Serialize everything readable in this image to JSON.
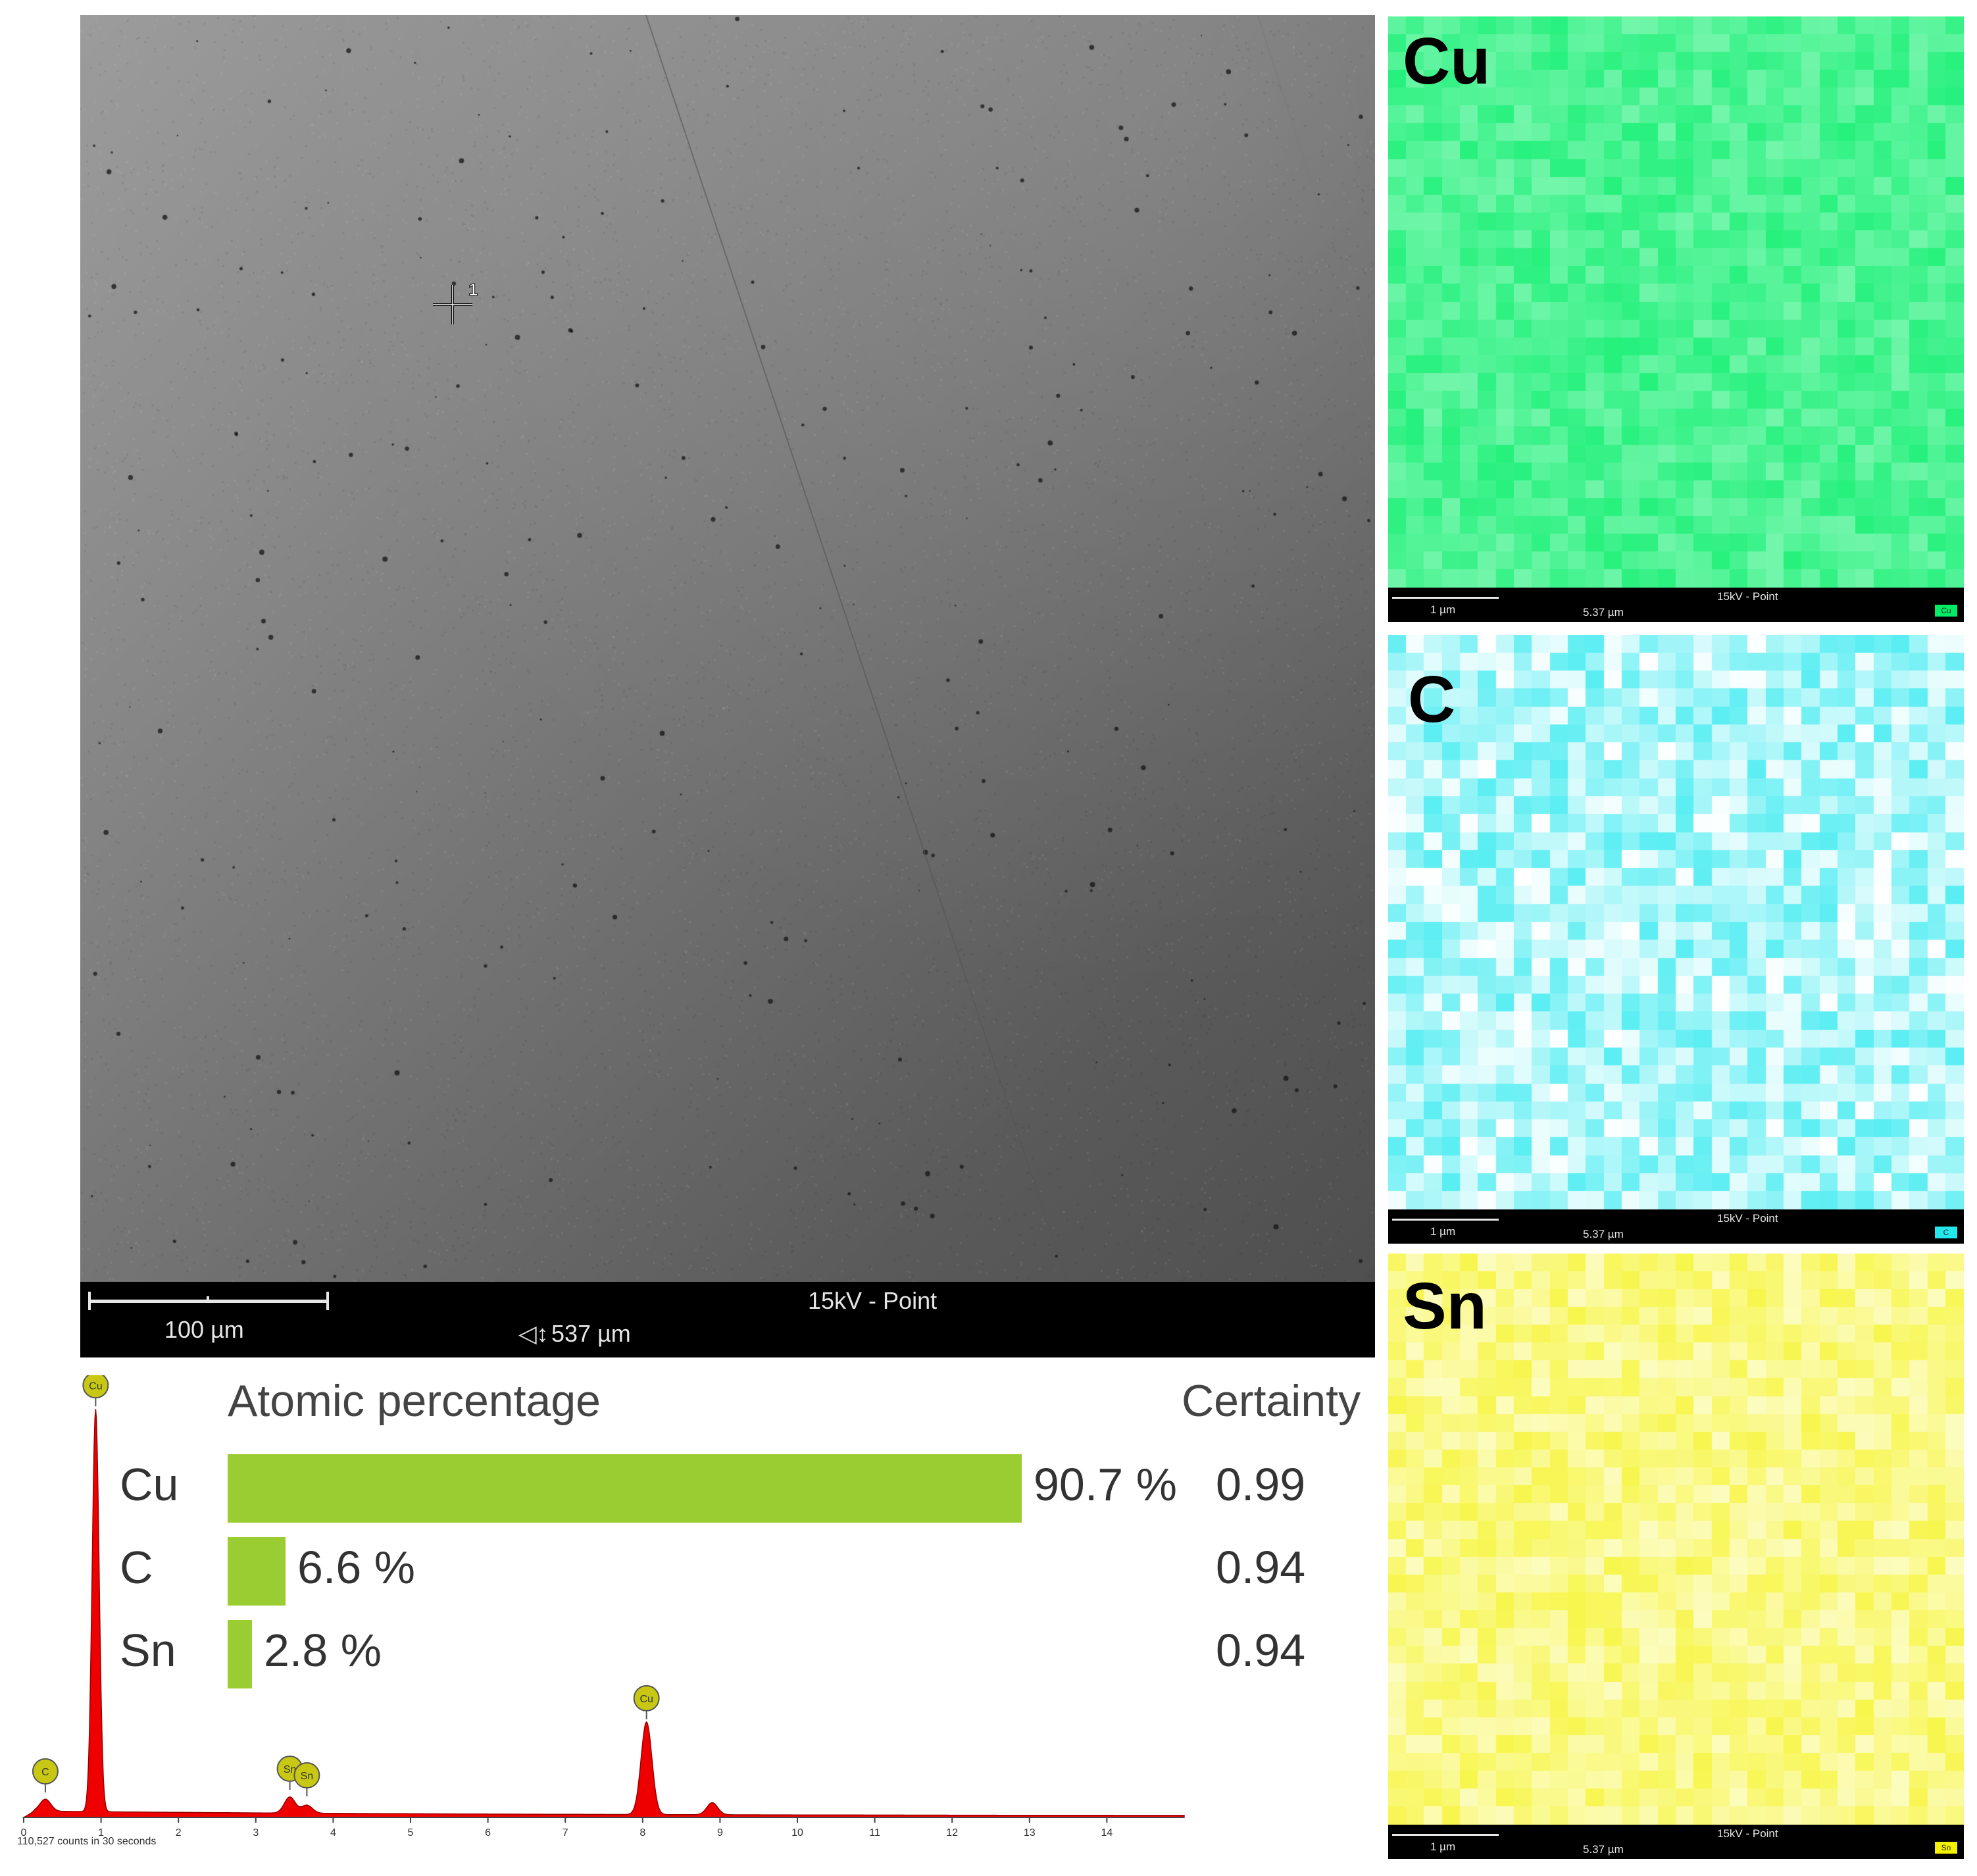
{
  "sem": {
    "scale_label": "100 µm",
    "mode_label": "15kV - Point",
    "field_width": "537 µm",
    "marker_label": "1"
  },
  "maps": [
    {
      "element": "Cu",
      "color": "#00ee66",
      "scale_label": "1 µm",
      "mode_label": "15kV - Point",
      "field_width": "5.37 µm",
      "chip": "Cu"
    },
    {
      "element": "C",
      "color": "#22e8ee",
      "scale_label": "1 µm",
      "mode_label": "15kV - Point",
      "field_width": "5.37 µm",
      "chip": "C"
    },
    {
      "element": "Sn",
      "color": "#f4f200",
      "scale_label": "1 µm",
      "mode_label": "15kV - Point",
      "field_width": "5.37 µm",
      "chip": "Sn"
    }
  ],
  "atomic": {
    "header": "Atomic percentage",
    "certainty_header": "Certainty",
    "rows": [
      {
        "element": "Cu",
        "value": 90.7,
        "label": "90.7 %",
        "certainty": "0.99"
      },
      {
        "element": "C",
        "value": 6.6,
        "label": "6.6 %",
        "certainty": "0.94"
      },
      {
        "element": "Sn",
        "value": 2.8,
        "label": "2.8 %",
        "certainty": "0.94"
      }
    ]
  },
  "chart_data": {
    "type": "area",
    "title": "",
    "xlabel": "",
    "ylabel": "",
    "xlim": [
      0,
      15
    ],
    "x_ticks": [
      "0",
      "1",
      "2",
      "3",
      "4",
      "5",
      "6",
      "7",
      "8",
      "9",
      "10",
      "11",
      "12",
      "13",
      "14"
    ],
    "fill_color": "#ee0000",
    "counts_label": "110,527 counts in 30 seconds",
    "peaks": [
      {
        "label": "C",
        "x": 0.28,
        "height": 0.03
      },
      {
        "label": "Cu",
        "x": 0.93,
        "height": 1.0
      },
      {
        "label": "Sn",
        "x": 3.44,
        "height": 0.04
      },
      {
        "label": "Sn",
        "x": 3.66,
        "height": 0.02
      },
      {
        "label": "Cu",
        "x": 8.05,
        "height": 0.23
      },
      {
        "label": "",
        "x": 8.9,
        "height": 0.03
      }
    ]
  }
}
